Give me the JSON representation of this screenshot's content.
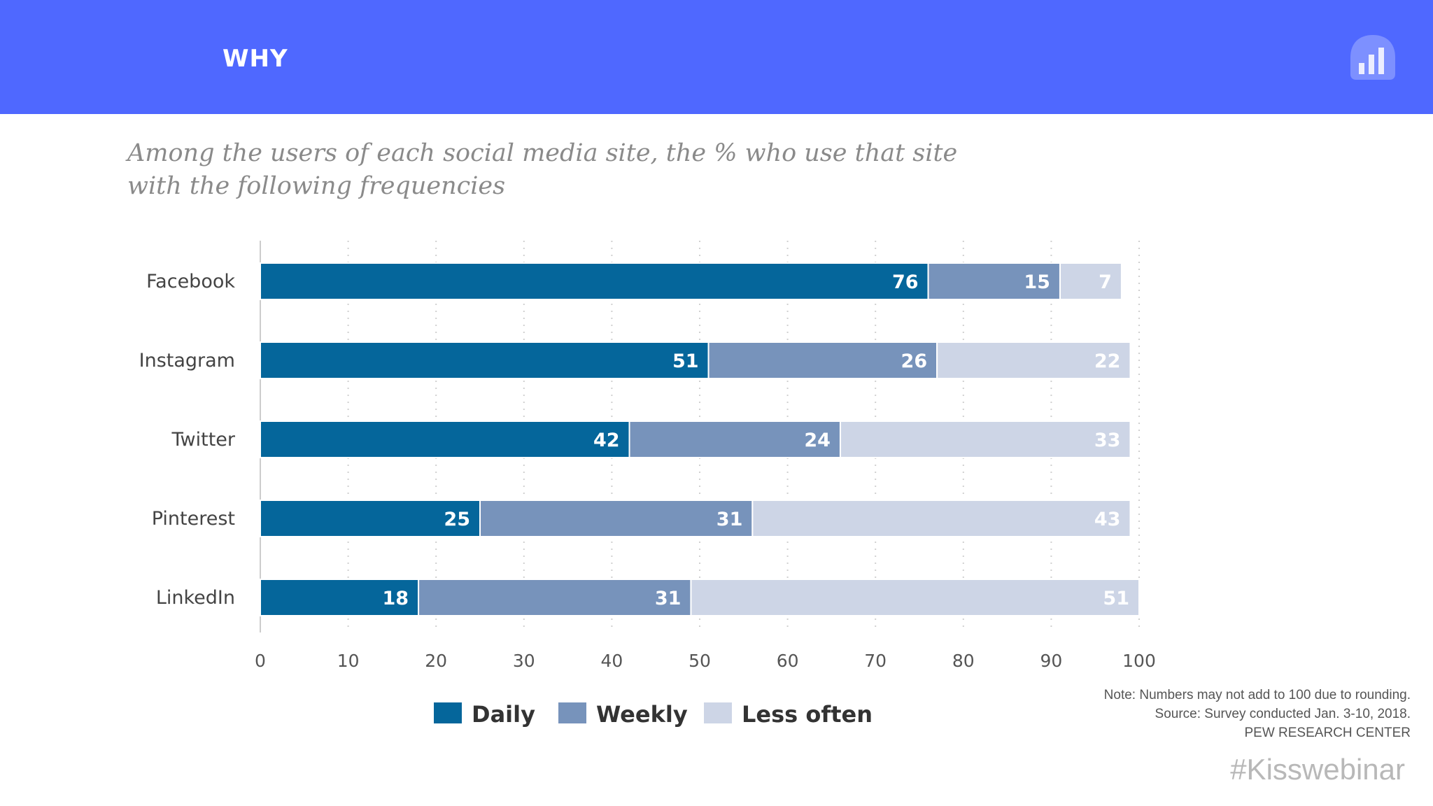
{
  "header": {
    "title": "WHY",
    "bg_color": "#4f68ff",
    "logo_icon": "bar-chart-logo-icon"
  },
  "chart_data": {
    "type": "bar",
    "orientation": "horizontal",
    "stacked": true,
    "title": "Among the users of each social media site, the % who use that site with the following frequencies",
    "categories": [
      "Facebook",
      "Instagram",
      "Twitter",
      "Pinterest",
      "LinkedIn"
    ],
    "series": [
      {
        "name": "Daily",
        "color": "#05669b",
        "values": [
          76,
          51,
          42,
          25,
          18
        ]
      },
      {
        "name": "Weekly",
        "color": "#7793bb",
        "values": [
          15,
          26,
          24,
          31,
          31
        ]
      },
      {
        "name": "Less often",
        "color": "#cdd5e6",
        "values": [
          7,
          22,
          33,
          43,
          51
        ]
      }
    ],
    "xlim": [
      0,
      100
    ],
    "xticks": [
      0,
      10,
      20,
      30,
      40,
      50,
      60,
      70,
      80,
      90,
      100
    ],
    "grid": "vertical-dotted",
    "legend": "bottom"
  },
  "notes": [
    "Note: Numbers may not add to 100 due to rounding.",
    "Source: Survey conducted Jan. 3-10, 2018.",
    "PEW RESEARCH CENTER"
  ],
  "hashtag": "#Kisswebinar"
}
